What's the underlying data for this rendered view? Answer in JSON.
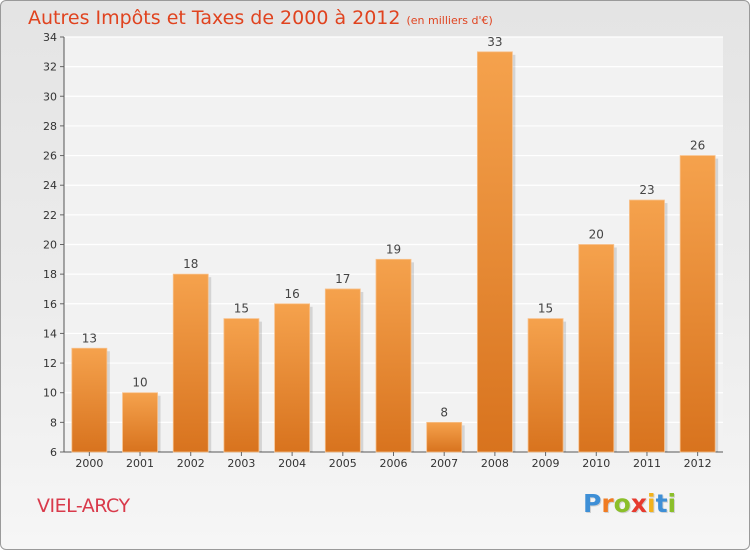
{
  "chart_data": {
    "type": "bar",
    "title": "Autres Impôts et Taxes de 2000 à 2012",
    "unit_label": "(en milliers d'€)",
    "categories": [
      "2000",
      "2001",
      "2002",
      "2003",
      "2004",
      "2005",
      "2006",
      "2007",
      "2008",
      "2009",
      "2010",
      "2011",
      "2012"
    ],
    "values": [
      13,
      10,
      18,
      15,
      16,
      17,
      19,
      8,
      33,
      15,
      20,
      23,
      26
    ],
    "ylim": [
      6,
      34
    ],
    "yticks": [
      6,
      8,
      10,
      12,
      14,
      16,
      18,
      20,
      22,
      24,
      26,
      28,
      30,
      32,
      34
    ],
    "grid": "horizontal",
    "colors": {
      "bar_top": "#f5a24d",
      "bar_bottom": "#d8731e",
      "title": "#e0431f"
    }
  },
  "footer": {
    "commune": "VIEL-ARCY",
    "logo_letters": [
      {
        "ch": "P",
        "color": "#3e8fd6"
      },
      {
        "ch": "r",
        "color": "#f07b22"
      },
      {
        "ch": "o",
        "color": "#8bbf2a"
      },
      {
        "ch": "x",
        "color": "#e63a2e"
      },
      {
        "ch": "i",
        "color": "#f2b21b"
      },
      {
        "ch": "t",
        "color": "#3e8fd6"
      },
      {
        "ch": "i",
        "color": "#8bbf2a"
      }
    ]
  }
}
